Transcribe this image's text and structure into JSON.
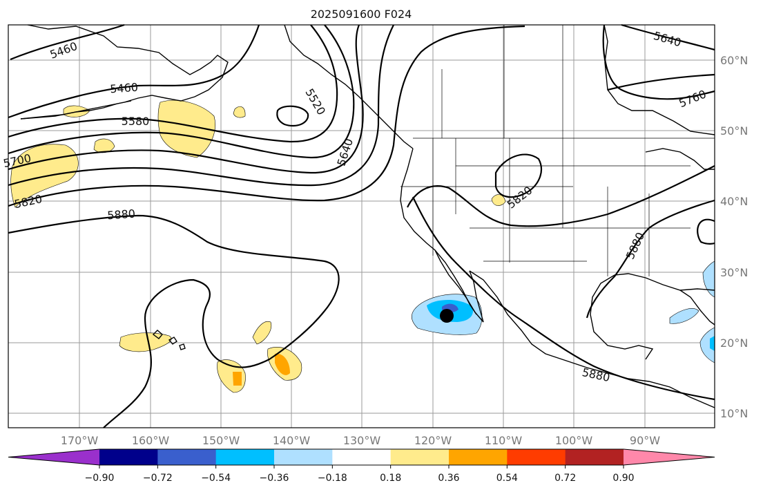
{
  "title": "2025091600 F024",
  "lat_labels": [
    "60°N",
    "50°N",
    "40°N",
    "30°N",
    "20°N",
    "10°N"
  ],
  "lon_labels": [
    "170°W",
    "160°W",
    "150°W",
    "140°W",
    "130°W",
    "120°W",
    "110°W",
    "100°W",
    "90°W"
  ],
  "contour_labels": [
    "5460",
    "5460",
    "5520",
    "5580",
    "5640",
    "5640",
    "5700",
    "5760",
    "5820",
    "5820",
    "5880",
    "5880",
    "5880"
  ],
  "colorbar": {
    "colors": [
      "#9a30cc",
      "#00008b",
      "#3a5fcd",
      "#00bfff",
      "#afe0ff",
      "#ffffff",
      "#ffeb8c",
      "#ffa500",
      "#ff3c00",
      "#b22222",
      "#ff88aa"
    ],
    "tick_labels": [
      "−0.90",
      "−0.72",
      "−0.54",
      "−0.36",
      "−0.18",
      "0.18",
      "0.36",
      "0.54",
      "0.72",
      "0.90"
    ]
  },
  "colors": {
    "positive_light": "#ffeb8c",
    "positive_mid": "#ffa500",
    "negative_light": "#afe0ff",
    "negative_mid": "#00bfff",
    "negative_dark": "#3a5fcd",
    "marker": "#000000",
    "grid": "#9a9a9a",
    "axis_label": "#777777"
  }
}
